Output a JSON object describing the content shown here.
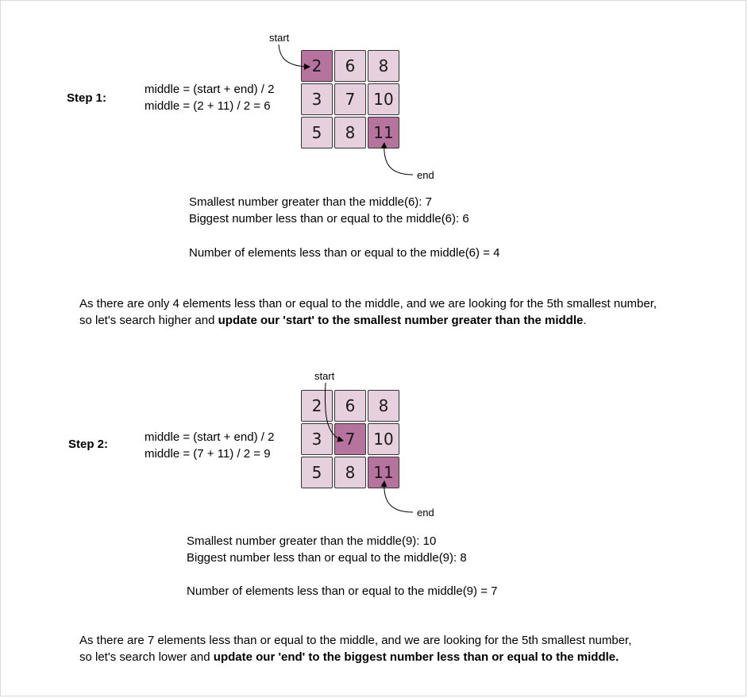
{
  "step1": {
    "label": "Step 1:",
    "formula_line1": "middle = (start + end) / 2",
    "formula_line2": "middle = (2 + 11) / 2 =  6",
    "matrix": [
      [
        "2",
        "6",
        "8"
      ],
      [
        "3",
        "7",
        "10"
      ],
      [
        "5",
        "8",
        "11"
      ]
    ],
    "start_label": "start",
    "end_label": "end",
    "info_smallest": "Smallest number greater than the middle(6): 7",
    "info_biggest": "Biggest number less than or equal to the middle(6): 6",
    "info_count": "Number of elements less than or equal to the middle(6) = 4",
    "explain_line1": "As there are only 4 elements less than or equal to the middle, and we are looking for the 5th smallest number,",
    "explain_line2_pre": "so let's search higher and ",
    "explain_line2_bold": "update our 'start' to the smallest number greater than the middle",
    "explain_line2_post": "."
  },
  "step2": {
    "label": "Step 2:",
    "formula_line1": "middle = (start + end) / 2",
    "formula_line2": "middle = (7 + 11) / 2 = 9",
    "matrix": [
      [
        "2",
        "6",
        "8"
      ],
      [
        "3",
        "7",
        "10"
      ],
      [
        "5",
        "8",
        "11"
      ]
    ],
    "start_label": "start",
    "end_label": "end",
    "info_smallest": "Smallest number greater than the middle(9): 10",
    "info_biggest": "Biggest number less than or equal to the middle(9): 8",
    "info_count": "Number of elements less than or equal to the middle(9) = 7",
    "explain_line1": "As there are 7 elements less than or equal to the middle, and we are looking for the 5th smallest number,",
    "explain_line2_pre": "so let's search lower and ",
    "explain_line2_bold": "update our 'end'  to the biggest number less than or equal to the middle.",
    "explain_line2_post": ""
  },
  "colors": {
    "cell_fill": "#e6d0de",
    "cell_highlight": "#b5739d",
    "cell_border": "#333333"
  }
}
